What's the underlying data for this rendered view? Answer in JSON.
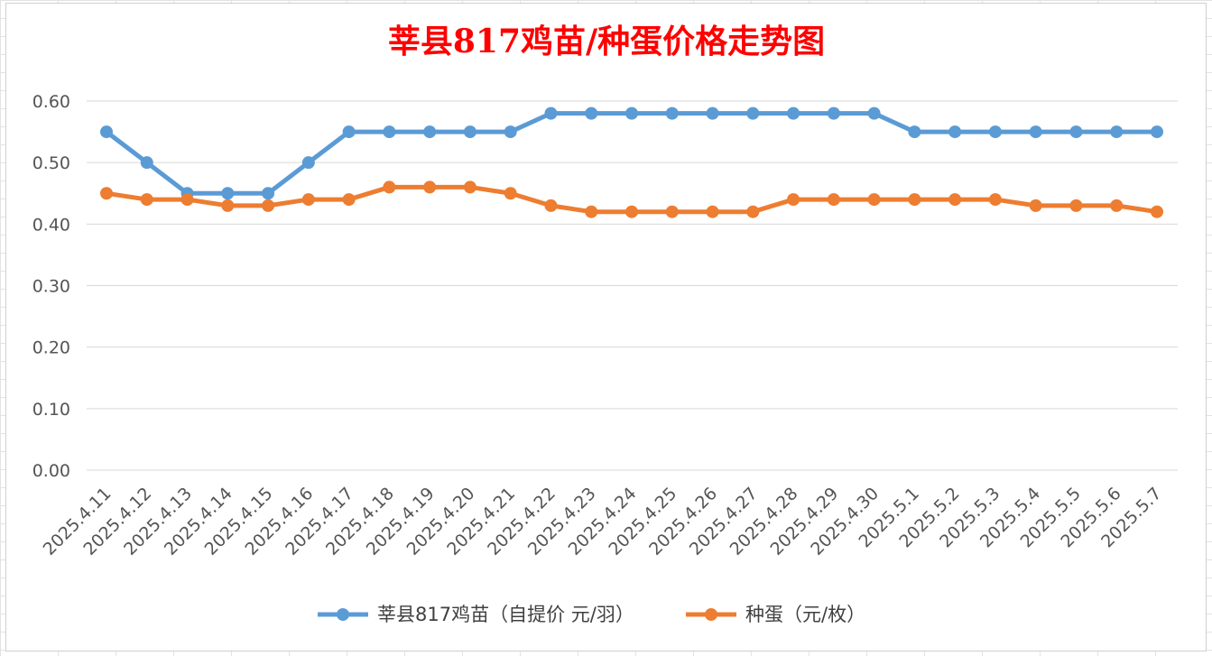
{
  "chart_data": {
    "type": "line",
    "title": "莘县817鸡苗/种蛋价格走势图",
    "xlabel": "",
    "ylabel": "",
    "ylim": [
      0,
      0.6
    ],
    "yticks": [
      "0.00",
      "0.10",
      "0.20",
      "0.30",
      "0.40",
      "0.50",
      "0.60"
    ],
    "grid": true,
    "legend_position": "bottom",
    "categories": [
      "2025.4.11",
      "2025.4.12",
      "2025.4.13",
      "2025.4.14",
      "2025.4.15",
      "2025.4.16",
      "2025.4.17",
      "2025.4.18",
      "2025.4.19",
      "2025.4.20",
      "2025.4.21",
      "2025.4.22",
      "2025.4.23",
      "2025.4.24",
      "2025.4.25",
      "2025.4.26",
      "2025.4.27",
      "2025.4.28",
      "2025.4.29",
      "2025.4.30",
      "2025.5.1",
      "2025.5.2",
      "2025.5.3",
      "2025.5.4",
      "2025.5.5",
      "2025.5.6",
      "2025.5.7"
    ],
    "series": [
      {
        "name": "莘县817鸡苗（自提价 元/羽）",
        "color": "#5b9bd5",
        "values": [
          0.55,
          0.5,
          0.45,
          0.45,
          0.45,
          0.5,
          0.55,
          0.55,
          0.55,
          0.55,
          0.55,
          0.58,
          0.58,
          0.58,
          0.58,
          0.58,
          0.58,
          0.58,
          0.58,
          0.58,
          0.55,
          0.55,
          0.55,
          0.55,
          0.55,
          0.55,
          0.55
        ]
      },
      {
        "name": "种蛋（元/枚）",
        "color": "#ed7d31",
        "values": [
          0.45,
          0.44,
          0.44,
          0.43,
          0.43,
          0.44,
          0.44,
          0.46,
          0.46,
          0.46,
          0.45,
          0.43,
          0.42,
          0.42,
          0.42,
          0.42,
          0.42,
          0.44,
          0.44,
          0.44,
          0.44,
          0.44,
          0.44,
          0.43,
          0.43,
          0.43,
          0.42
        ]
      }
    ]
  }
}
